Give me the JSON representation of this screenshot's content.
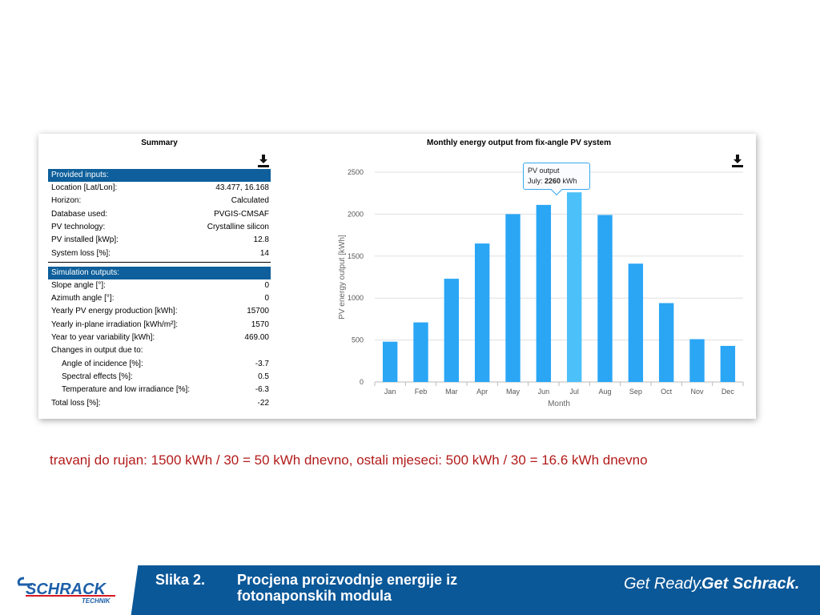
{
  "summary": {
    "title": "Summary",
    "inputs_header": "Provided inputs:",
    "inputs": [
      {
        "label": "Location [Lat/Lon]:",
        "value": "43.477, 16.168"
      },
      {
        "label": "Horizon:",
        "value": "Calculated"
      },
      {
        "label": "Database used:",
        "value": "PVGIS-CMSAF"
      },
      {
        "label": "PV technology:",
        "value": "Crystalline silicon"
      },
      {
        "label": "PV installed [kWp]:",
        "value": "12.8"
      },
      {
        "label": "System loss [%]:",
        "value": "14"
      }
    ],
    "outputs_header": "Simulation outputs:",
    "outputs": [
      {
        "label": "Slope angle [°]:",
        "value": "0"
      },
      {
        "label": "Azimuth angle [°]:",
        "value": "0"
      },
      {
        "label": "Yearly PV energy production [kWh]:",
        "value": "15700"
      },
      {
        "label": "Yearly in-plane irradiation [kWh/m²]:",
        "value": "1570"
      },
      {
        "label": "Year to year variability [kWh]:",
        "value": "469.00"
      },
      {
        "label": "Changes in output due to:",
        "value": ""
      },
      {
        "label": "Angle of incidence [%]:",
        "value": "-3.7"
      },
      {
        "label": "Spectral effects [%]:",
        "value": "0.5"
      },
      {
        "label": "Temperature and low irradiance [%]:",
        "value": "-6.3"
      },
      {
        "label": "Total loss [%]:",
        "value": "-22"
      }
    ]
  },
  "chart_data": {
    "type": "bar",
    "title": "Monthly energy output from fix-angle PV system",
    "xlabel": "Month",
    "ylabel": "PV energy output [kWh]",
    "categories": [
      "Jan",
      "Feb",
      "Mar",
      "Apr",
      "May",
      "Jun",
      "Jul",
      "Aug",
      "Sep",
      "Oct",
      "Nov",
      "Dec"
    ],
    "values": [
      480,
      710,
      1230,
      1650,
      2000,
      2110,
      2260,
      1990,
      1410,
      940,
      510,
      430
    ],
    "ylim": [
      0,
      2500
    ],
    "yticks": [
      "0",
      "500",
      "1000",
      "1500",
      "2000",
      "2500"
    ],
    "grid": true,
    "bar_color": "#2aa6f5",
    "highlight_color": "#4cc0f9",
    "highlight_index": 6,
    "tooltip": {
      "title": "PV output",
      "prefix": "July: ",
      "value": "2260",
      "unit": " kWh"
    }
  },
  "note": "travanj do rujan:  1500 kWh / 30 = 50 kWh dnevno, ostali mjeseci: 500 kWh / 30 = 16.6 kWh dnevno",
  "footer": {
    "logo_text": "SCHRACK",
    "logo_sub": "TECHNIK",
    "slide_label": "Slika 2.",
    "slide_caption": "Procjena proizvodnje energije iz fotonaponskih modula",
    "tagline_a": "Get Ready.",
    "tagline_b": "Get Schrack.",
    "brand_color": "#0b5898"
  }
}
